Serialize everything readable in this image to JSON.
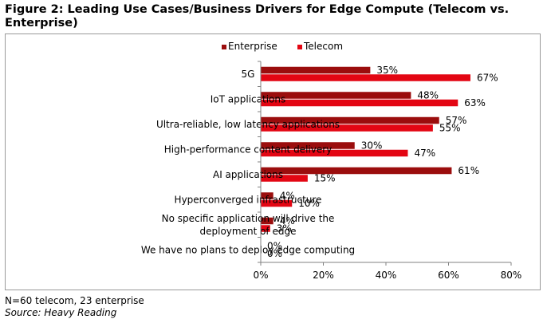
{
  "figure_title": "Figure 2: Leading Use Cases/Business Drivers for Edge Compute (Telecom vs. Enterprise)",
  "footnote": "N=60 telecom, 23 enterprise",
  "source": "Source: Heavy Reading",
  "colors": {
    "enterprise": "#9b0d0d",
    "telecom": "#e30613",
    "axis": "#808080"
  },
  "chart_data": {
    "type": "bar",
    "orientation": "horizontal",
    "title": "",
    "xlabel": "",
    "ylabel": "",
    "xlim": [
      0,
      80
    ],
    "ticks": [
      "0%",
      "20%",
      "40%",
      "60%",
      "80%"
    ],
    "tick_values": [
      0,
      20,
      40,
      60,
      80
    ],
    "legend_placement": "top",
    "grid": false,
    "categories": [
      [
        "5G"
      ],
      [
        "IoT applications"
      ],
      [
        "Ultra-reliable, low latency applications"
      ],
      [
        "High-performance content delivery"
      ],
      [
        "AI applications"
      ],
      [
        "Hyperconverged infrastructure"
      ],
      [
        "No specific application will drive the",
        "deployment of edge"
      ],
      [
        "We have no plans to deploy edge computing"
      ]
    ],
    "series": [
      {
        "name": "Enterprise",
        "color": "#9b0d0d",
        "values": [
          35,
          48,
          57,
          30,
          61,
          4,
          4,
          0
        ],
        "labels": [
          "35%",
          "48%",
          "57%",
          "30%",
          "61%",
          "4%",
          "4%",
          "0%"
        ]
      },
      {
        "name": "Telecom",
        "color": "#e30613",
        "values": [
          67,
          63,
          55,
          47,
          15,
          10,
          3,
          0
        ],
        "labels": [
          "67%",
          "63%",
          "55%",
          "47%",
          "15%",
          "10%",
          "3%",
          "0%"
        ]
      }
    ]
  }
}
